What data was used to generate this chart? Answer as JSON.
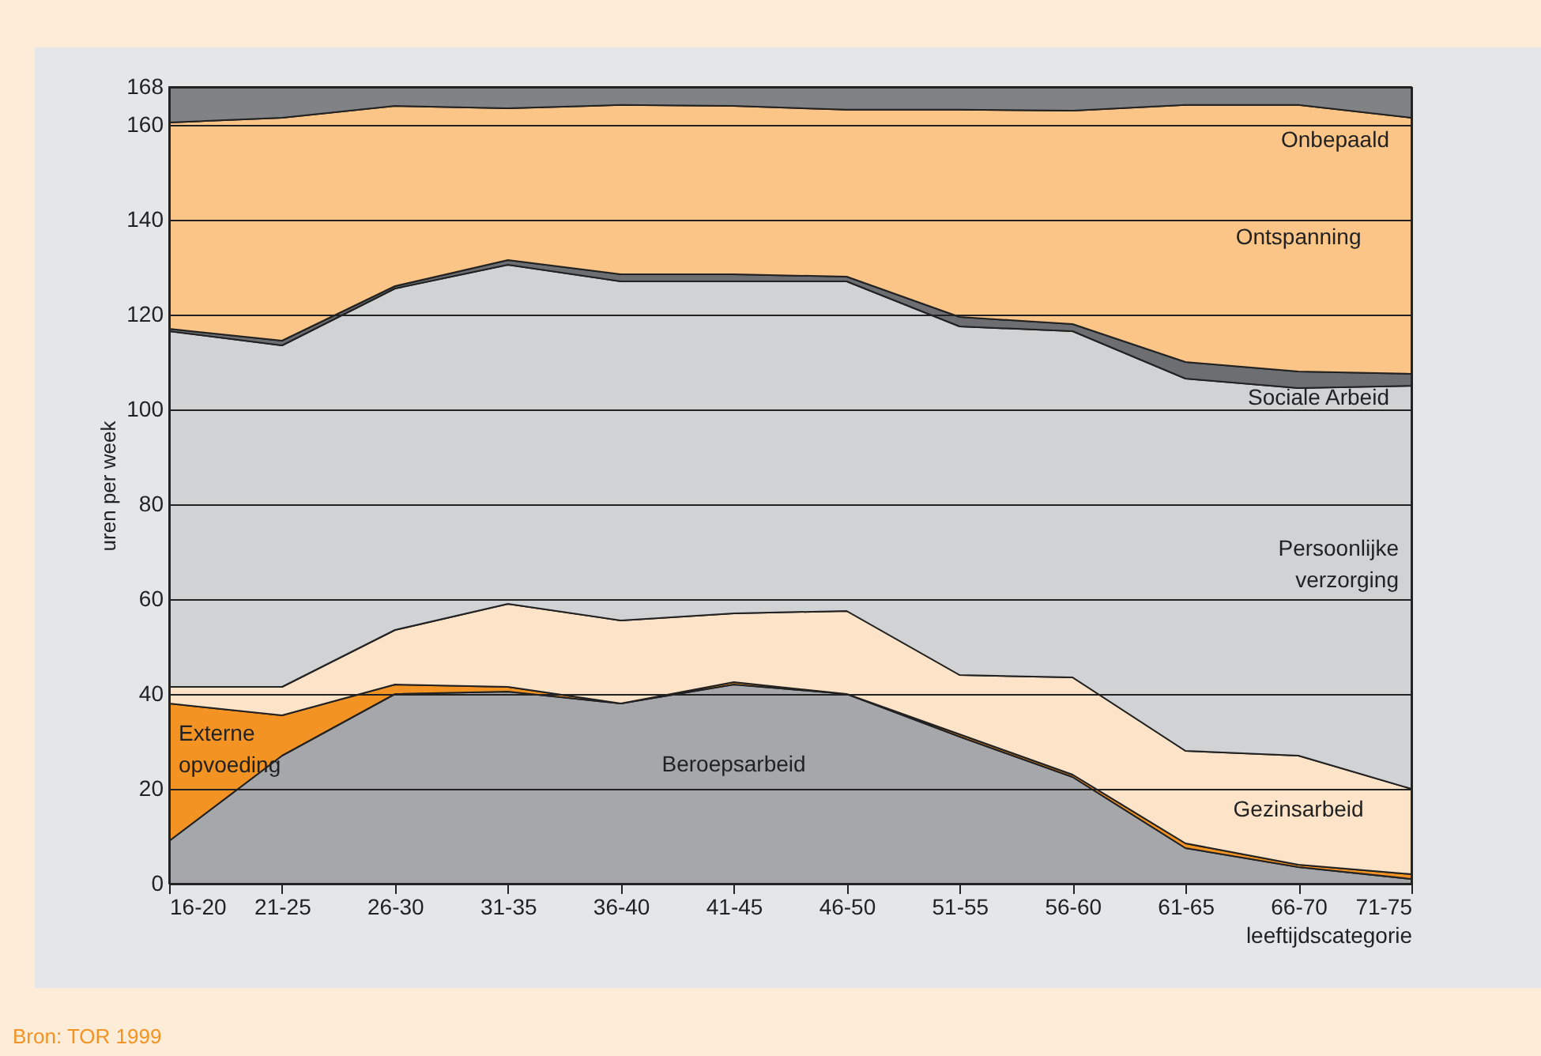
{
  "chart_data": {
    "type": "area",
    "stacked": true,
    "ylabel": "uren per week",
    "xlabel": "leeftijdscategorie",
    "categories": [
      "16-20",
      "21-25",
      "26-30",
      "31-35",
      "36-40",
      "41-45",
      "46-50",
      "51-55",
      "56-60",
      "61-65",
      "66-70",
      "71-75"
    ],
    "series": [
      {
        "name": "Beroepsarbeid",
        "color": "#a6a7ab",
        "values": [
          9,
          27,
          40,
          40.5,
          38,
          42,
          40,
          31,
          22.5,
          7.5,
          3.5,
          1
        ]
      },
      {
        "name": "Externe opvoeding",
        "color": "#f39323",
        "values": [
          29,
          8.5,
          2,
          1,
          0,
          0.5,
          0,
          0.5,
          0.5,
          1,
          0.5,
          1
        ]
      },
      {
        "name": "Gezinsarbeid",
        "color": "#fde3c8",
        "values": [
          3.5,
          6,
          11.5,
          17.5,
          17.5,
          14.5,
          17.5,
          12.5,
          20.5,
          19.5,
          23,
          18
        ]
      },
      {
        "name": "Persoonlijke verzorging",
        "color": "#d1d2d4",
        "values": [
          75,
          72,
          72,
          71.5,
          71.5,
          70,
          69.5,
          73.5,
          73,
          78.5,
          77.5,
          85
        ]
      },
      {
        "name": "Sociale Arbeid",
        "color": "#6d6e71",
        "values": [
          0.5,
          1,
          0.5,
          1,
          1.5,
          1.5,
          1,
          2,
          1.5,
          3.5,
          3.5,
          2.5
        ]
      },
      {
        "name": "Ontspanning",
        "color": "#fbc587",
        "values": [
          43.5,
          47,
          38,
          32,
          35.7,
          35.5,
          35.2,
          43.7,
          45,
          54.2,
          56.2,
          54
        ]
      },
      {
        "name": "Onbepaald",
        "color": "#808285",
        "values": [
          7.5,
          6.5,
          4,
          4.5,
          3.8,
          4,
          4.8,
          4.8,
          5,
          3.8,
          3.8,
          6.5
        ]
      }
    ],
    "ylim": [
      0,
      168
    ],
    "yticks": [
      0,
      20,
      40,
      60,
      80,
      100,
      120,
      140,
      160,
      168
    ],
    "grid": "y",
    "legend": false,
    "annotations": [
      "Bron: TOR 1999"
    ]
  }
}
